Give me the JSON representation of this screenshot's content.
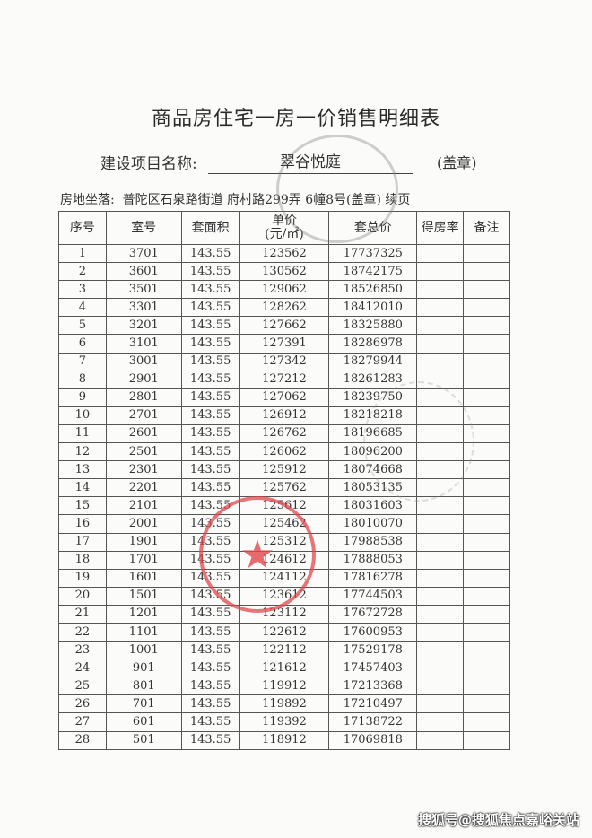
{
  "title": "商品房住宅一房一价销售明细表",
  "project": {
    "label": "建设项目名称:",
    "name": "翠谷悦庭",
    "seal_note": "(盖章)"
  },
  "location": {
    "label": "房地坐落:",
    "value": "普陀区石泉路街道 府村路299弄 6幢8号(盖章) 续页"
  },
  "table": {
    "headers": [
      "序号",
      "室号",
      "套面积",
      "单价",
      "(元/㎡)",
      "套总价",
      "得房率",
      "备注"
    ],
    "rows": [
      [
        "1",
        "3701",
        "143.55",
        "123562",
        "17737325"
      ],
      [
        "2",
        "3601",
        "143.55",
        "130562",
        "18742175"
      ],
      [
        "3",
        "3501",
        "143.55",
        "129062",
        "18526850"
      ],
      [
        "4",
        "3301",
        "143.55",
        "128262",
        "18412010"
      ],
      [
        "5",
        "3201",
        "143.55",
        "127662",
        "18325880"
      ],
      [
        "6",
        "3101",
        "143.55",
        "127391",
        "18286978"
      ],
      [
        "7",
        "3001",
        "143.55",
        "127342",
        "18279944"
      ],
      [
        "8",
        "2901",
        "143.55",
        "127212",
        "18261283"
      ],
      [
        "9",
        "2801",
        "143.55",
        "127062",
        "18239750"
      ],
      [
        "10",
        "2701",
        "143.55",
        "126912",
        "18218218"
      ],
      [
        "11",
        "2601",
        "143.55",
        "126762",
        "18196685"
      ],
      [
        "12",
        "2501",
        "143.55",
        "126062",
        "18096200"
      ],
      [
        "13",
        "2301",
        "143.55",
        "125912",
        "18074668"
      ],
      [
        "14",
        "2201",
        "143.55",
        "125762",
        "18053135"
      ],
      [
        "15",
        "2101",
        "143.55",
        "125612",
        "18031603"
      ],
      [
        "16",
        "2001",
        "143.55",
        "125462",
        "18010070"
      ],
      [
        "17",
        "1901",
        "143.55",
        "125312",
        "17988538"
      ],
      [
        "18",
        "1701",
        "143.55",
        "124612",
        "17888053"
      ],
      [
        "19",
        "1601",
        "143.55",
        "124112",
        "17816278"
      ],
      [
        "20",
        "1501",
        "143.55",
        "123612",
        "17744503"
      ],
      [
        "21",
        "1201",
        "143.55",
        "123112",
        "17672728"
      ],
      [
        "22",
        "1101",
        "143.55",
        "122612",
        "17600953"
      ],
      [
        "23",
        "1001",
        "143.55",
        "122112",
        "17529178"
      ],
      [
        "24",
        "901",
        "143.55",
        "121612",
        "17457403"
      ],
      [
        "25",
        "801",
        "143.55",
        "119912",
        "17213368"
      ],
      [
        "26",
        "701",
        "143.55",
        "119892",
        "17210497"
      ],
      [
        "27",
        "601",
        "143.55",
        "119392",
        "17138722"
      ],
      [
        "28",
        "501",
        "143.55",
        "118912",
        "17069818"
      ]
    ]
  },
  "watermark": "搜狐号@搜狐焦点嘉峪关站",
  "colors": {
    "stamp": "#e0474c",
    "faded_stamp": "#8a8a8a"
  }
}
